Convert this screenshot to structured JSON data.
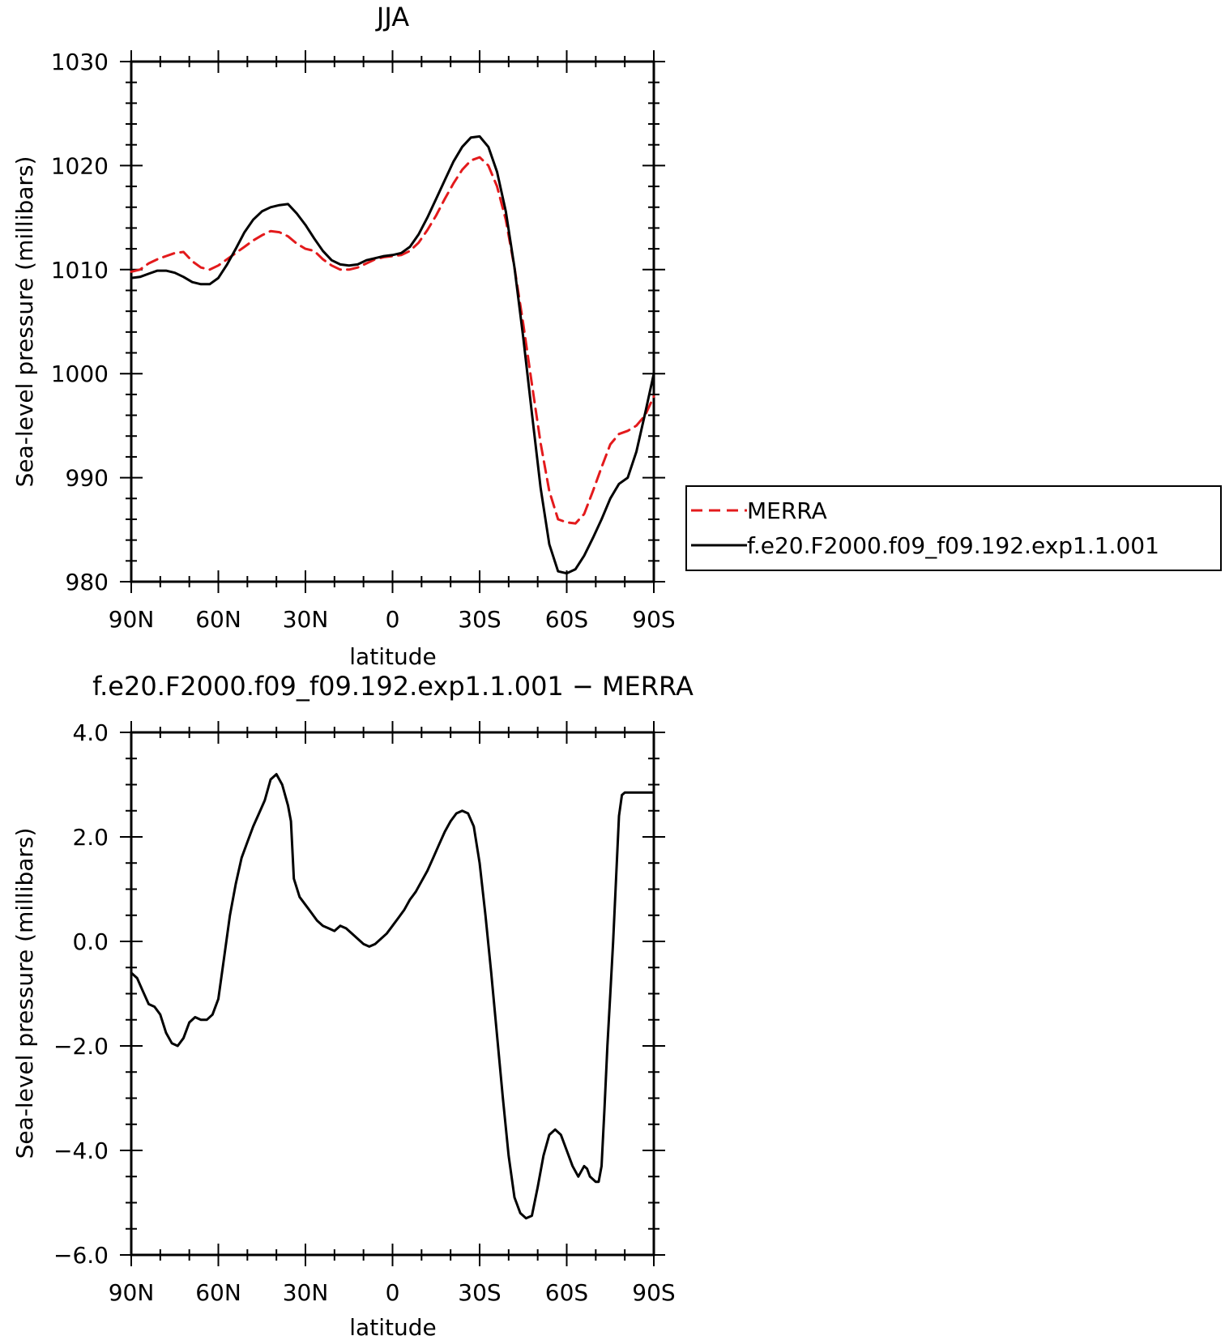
{
  "chart_data": [
    {
      "type": "line",
      "title": "JJA",
      "xlabel": "latitude",
      "ylabel": "Sea-level pressure (millibars)",
      "xlim": [
        -90,
        90
      ],
      "ylim": [
        980,
        1030
      ],
      "x_ticks": [
        -90,
        -60,
        -30,
        0,
        30,
        60,
        90
      ],
      "x_tick_labels": [
        "90N",
        "60N",
        "30N",
        "0",
        "30S",
        "60S",
        "90S"
      ],
      "y_ticks": [
        980,
        990,
        1000,
        1010,
        1020,
        1030
      ],
      "y_tick_labels": [
        "980",
        "990",
        "1000",
        "1010",
        "1020",
        "1030"
      ],
      "legend": "right",
      "series": [
        {
          "name": "MERRA",
          "color": "#e31a1c",
          "dash": "dashed",
          "x": [
            -90,
            -87,
            -84,
            -81,
            -78,
            -75,
            -72,
            -69,
            -66,
            -63,
            -60,
            -57,
            -54,
            -51,
            -48,
            -45,
            -42,
            -39,
            -36,
            -33,
            -30,
            -27,
            -24,
            -21,
            -18,
            -15,
            -12,
            -9,
            -6,
            -3,
            0,
            3,
            6,
            9,
            12,
            15,
            18,
            21,
            24,
            27,
            30,
            33,
            36,
            39,
            42,
            45,
            48,
            51,
            54,
            57,
            60,
            63,
            66,
            69,
            72,
            75,
            78,
            81,
            84,
            87,
            90
          ],
          "values": [
            1009.8,
            1010.0,
            1010.6,
            1011.0,
            1011.3,
            1011.6,
            1011.7,
            1010.8,
            1010.2,
            1010.0,
            1010.4,
            1011.0,
            1011.6,
            1012.2,
            1012.8,
            1013.3,
            1013.7,
            1013.6,
            1013.2,
            1012.5,
            1012.0,
            1011.8,
            1011.0,
            1010.4,
            1010.0,
            1010.0,
            1010.2,
            1010.6,
            1011.0,
            1011.2,
            1011.3,
            1011.4,
            1011.8,
            1012.6,
            1013.8,
            1015.2,
            1016.8,
            1018.3,
            1019.6,
            1020.5,
            1020.8,
            1020.0,
            1018.0,
            1014.8,
            1010.2,
            1004.8,
            999.0,
            993.3,
            988.7,
            986.0,
            985.7,
            985.6,
            986.5,
            988.7,
            991.0,
            993.2,
            994.2,
            994.5,
            995.0,
            996.0,
            997.8
          ]
        },
        {
          "name": "f.e20.F2000.f09_f09.192.exp1.1.001",
          "color": "#000000",
          "dash": "solid",
          "x": [
            -90,
            -87,
            -84,
            -81,
            -78,
            -75,
            -72,
            -69,
            -66,
            -63,
            -60,
            -57,
            -54,
            -51,
            -48,
            -45,
            -42,
            -39,
            -36,
            -33,
            -30,
            -27,
            -24,
            -21,
            -18,
            -15,
            -12,
            -9,
            -6,
            -3,
            0,
            3,
            6,
            9,
            12,
            15,
            18,
            21,
            24,
            27,
            30,
            33,
            36,
            39,
            42,
            45,
            48,
            51,
            54,
            57,
            60,
            63,
            66,
            69,
            72,
            75,
            78,
            81,
            84,
            87,
            90
          ],
          "values": [
            1009.2,
            1009.3,
            1009.6,
            1009.9,
            1009.9,
            1009.7,
            1009.3,
            1008.8,
            1008.6,
            1008.6,
            1009.2,
            1010.5,
            1012.0,
            1013.6,
            1014.8,
            1015.6,
            1016.0,
            1016.2,
            1016.3,
            1015.4,
            1014.3,
            1013.0,
            1011.8,
            1010.9,
            1010.5,
            1010.4,
            1010.5,
            1010.9,
            1011.1,
            1011.3,
            1011.4,
            1011.6,
            1012.2,
            1013.4,
            1015.0,
            1016.8,
            1018.6,
            1020.4,
            1021.8,
            1022.7,
            1022.8,
            1021.8,
            1019.4,
            1015.6,
            1010.2,
            1003.5,
            996.2,
            989.0,
            983.6,
            981.0,
            980.8,
            981.2,
            982.5,
            984.2,
            986.0,
            988.0,
            989.4,
            990.0,
            992.5,
            996.2,
            1000.0
          ]
        }
      ]
    },
    {
      "type": "line",
      "title": "f.e20.F2000.f09_f09.192.exp1.1.001 − MERRA",
      "xlabel": "latitude",
      "ylabel": "Sea-level pressure (millibars)",
      "xlim": [
        -90,
        90
      ],
      "ylim": [
        -6.0,
        4.0
      ],
      "x_ticks": [
        -90,
        -60,
        -30,
        0,
        30,
        60,
        90
      ],
      "x_tick_labels": [
        "90N",
        "60N",
        "30N",
        "0",
        "30S",
        "60S",
        "90S"
      ],
      "y_ticks": [
        -6.0,
        -4.0,
        -2.0,
        0.0,
        2.0,
        4.0
      ],
      "y_tick_labels": [
        "−6.0",
        "−4.0",
        "−2.0",
        "0.0",
        "2.0",
        "4.0"
      ],
      "series": [
        {
          "color": "#000000",
          "dash": "solid",
          "x": [
            -90,
            -88,
            -86,
            -84,
            -82,
            -80,
            -78,
            -76,
            -74,
            -72,
            -70,
            -68,
            -66,
            -64,
            -62,
            -60,
            -58,
            -56,
            -54,
            -52,
            -50,
            -48,
            -46,
            -44,
            -42,
            -40,
            -38,
            -36,
            -35,
            -34,
            -32,
            -30,
            -28,
            -26,
            -24,
            -22,
            -20,
            -18,
            -16,
            -14,
            -12,
            -10,
            -8,
            -6,
            -4,
            -2,
            0,
            2,
            4,
            6,
            8,
            10,
            12,
            14,
            16,
            18,
            20,
            22,
            24,
            26,
            28,
            30,
            32,
            34,
            36,
            38,
            40,
            42,
            44,
            46,
            48,
            50,
            52,
            54,
            56,
            58,
            60,
            62,
            64,
            65,
            66,
            67,
            68,
            70,
            71,
            72,
            73,
            74,
            75,
            76,
            77,
            78,
            79,
            80,
            81,
            82,
            83,
            84,
            85,
            86,
            87,
            88,
            89,
            90
          ],
          "values": [
            -0.6,
            -0.7,
            -0.95,
            -1.2,
            -1.25,
            -1.4,
            -1.75,
            -1.95,
            -2.0,
            -1.85,
            -1.55,
            -1.45,
            -1.5,
            -1.5,
            -1.4,
            -1.1,
            -0.3,
            0.5,
            1.1,
            1.6,
            1.9,
            2.2,
            2.45,
            2.7,
            3.1,
            3.2,
            3.0,
            2.6,
            2.3,
            1.2,
            0.85,
            0.7,
            0.55,
            0.4,
            0.3,
            0.25,
            0.2,
            0.3,
            0.25,
            0.15,
            0.05,
            -0.05,
            -0.1,
            -0.05,
            0.05,
            0.15,
            0.3,
            0.45,
            0.6,
            0.8,
            0.95,
            1.15,
            1.35,
            1.6,
            1.85,
            2.1,
            2.3,
            2.45,
            2.5,
            2.45,
            2.2,
            1.5,
            0.5,
            -0.6,
            -1.8,
            -3.0,
            -4.1,
            -4.9,
            -5.2,
            -5.3,
            -5.25,
            -4.7,
            -4.1,
            -3.7,
            -3.6,
            -3.7,
            -4.0,
            -4.3,
            -4.5,
            -4.4,
            -4.3,
            -4.35,
            -4.5,
            -4.6,
            -4.6,
            -4.3,
            -3.2,
            -2.0,
            -1.0,
            0.0,
            1.2,
            2.4,
            2.8,
            2.85,
            2.85,
            2.85,
            2.85,
            2.85,
            2.85,
            2.85,
            2.85,
            2.85,
            2.85,
            2.85
          ]
        }
      ]
    }
  ]
}
